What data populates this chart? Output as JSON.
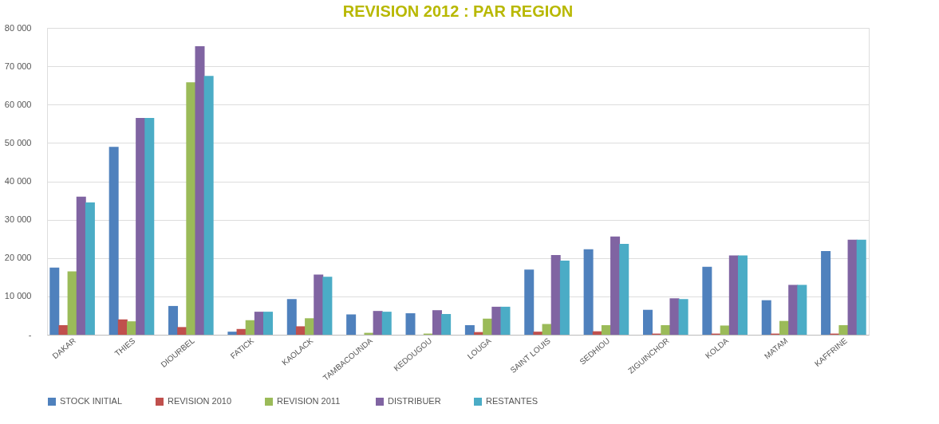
{
  "chart_data": {
    "type": "bar",
    "title": "REVISION 2012 : PAR REGION",
    "categories": [
      "DAKAR",
      "THIES",
      "DIOURBEL",
      "FATICK",
      "KAOLACK",
      "TAMBACOUNDA",
      "KEDOUGOU",
      "LOUGA",
      "SAINT LOUIS",
      "SEDHIOU",
      "ZIGUINCHOR",
      "KOLDA",
      "MATAM",
      "KAFFRINE"
    ],
    "series": [
      {
        "name": "STOCK INITIAL",
        "color": "#4f81bd",
        "values": [
          17500,
          49000,
          7500,
          800,
          9300,
          5300,
          5600,
          2500,
          17000,
          22300,
          6500,
          17700,
          9000,
          21800
        ]
      },
      {
        "name": "REVISION 2010",
        "color": "#c0504d",
        "values": [
          2500,
          4000,
          2000,
          1500,
          2200,
          0,
          0,
          700,
          800,
          900,
          300,
          300,
          300,
          300
        ]
      },
      {
        "name": "REVISION  2011",
        "color": "#9bbb59",
        "values": [
          16500,
          3500,
          65800,
          3800,
          4300,
          500,
          300,
          4200,
          2800,
          2500,
          2500,
          2400,
          3600,
          2500
        ]
      },
      {
        "name": "DISTRIBUER",
        "color": "#8064a2",
        "values": [
          36000,
          56500,
          75200,
          6000,
          15700,
          6200,
          6400,
          7300,
          20800,
          25600,
          9500,
          20700,
          13000,
          24800
        ]
      },
      {
        "name": "RESTANTES",
        "color": "#4bacc6",
        "values": [
          34500,
          56500,
          67500,
          6000,
          15100,
          6000,
          5400,
          7300,
          19300,
          23700,
          9300,
          20700,
          13000,
          24800
        ]
      }
    ],
    "ylim": [
      0,
      80000
    ],
    "yticks": [
      {
        "value": 0,
        "label": "-"
      },
      {
        "value": 10000,
        "label": "10 000"
      },
      {
        "value": 20000,
        "label": "20 000"
      },
      {
        "value": 30000,
        "label": "30 000"
      },
      {
        "value": 40000,
        "label": "40 000"
      },
      {
        "value": 50000,
        "label": "50 000"
      },
      {
        "value": 60000,
        "label": "60 000"
      },
      {
        "value": 70000,
        "label": "70 000"
      },
      {
        "value": 80000,
        "label": "80 000"
      }
    ],
    "grid": "y",
    "legend": "bottom"
  }
}
